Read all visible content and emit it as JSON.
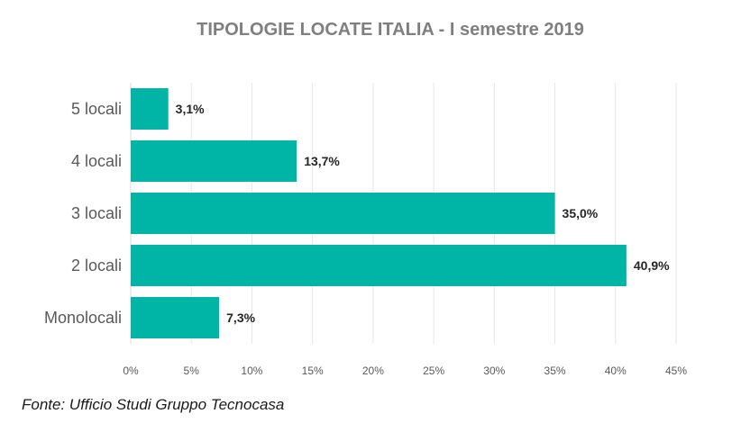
{
  "chart_data": {
    "type": "bar",
    "orientation": "horizontal",
    "title": "TIPOLOGIE LOCATE ITALIA - I semestre 2019",
    "categories": [
      "5 locali",
      "4 locali",
      "3 locali",
      "2 locali",
      "Monolocali"
    ],
    "values": [
      3.1,
      13.7,
      35.0,
      40.9,
      7.3
    ],
    "value_labels": [
      "3,1%",
      "13,7%",
      "35,0%",
      "40,9%",
      "7,3%"
    ],
    "xlim": [
      0,
      45
    ],
    "x_ticks": [
      0,
      5,
      10,
      15,
      20,
      25,
      30,
      35,
      40,
      45
    ],
    "x_tick_labels": [
      "0%",
      "5%",
      "10%",
      "15%",
      "20%",
      "25%",
      "30%",
      "35%",
      "40%",
      "45%"
    ],
    "xlabel": "",
    "ylabel": "",
    "grid": "vertical",
    "legend": "none",
    "bar_color": "#00b4a6",
    "grid_color": "#e6e6e6",
    "title_color": "#7f7f7f",
    "source": "Fonte: Ufficio Studi Gruppo Tecnocasa"
  }
}
